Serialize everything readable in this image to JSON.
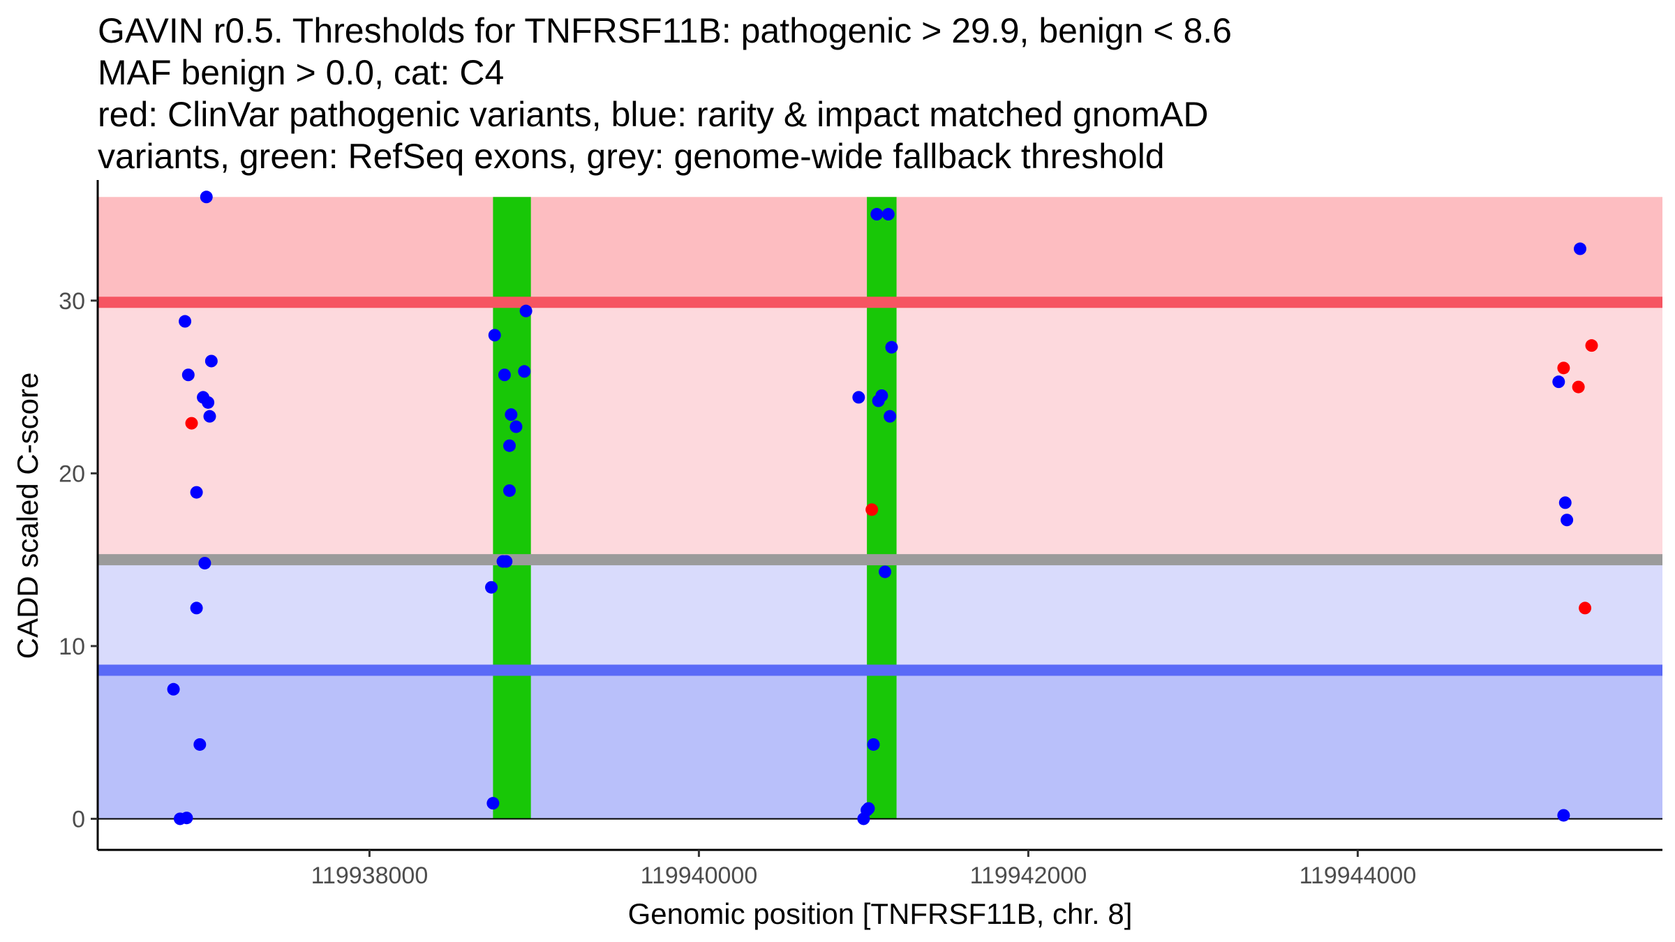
{
  "title_lines": [
    "GAVIN r0.5. Thresholds for TNFRSF11B: pathogenic > 29.9, benign < 8.6",
    "MAF benign > 0.0, cat: C4",
    "red: ClinVar pathogenic variants, blue: rarity & impact matched gnomAD",
    "variants, green: RefSeq exons, grey: genome-wide fallback threshold"
  ],
  "chart_data": {
    "type": "scatter",
    "title": "GAVIN r0.5. Thresholds for TNFRSF11B: pathogenic > 29.9, benign < 8.6 MAF benign > 0.0, cat: C4",
    "xlabel": "Genomic position [TNFRSF11B, chr. 8]",
    "ylabel": "CADD scaled C-score",
    "xlim": [
      119936350,
      119945850
    ],
    "ylim": [
      -1.8,
      36.9
    ],
    "x_ticks": [
      119938000,
      119940000,
      119942000,
      119944000
    ],
    "x_tick_labels": [
      "119938000",
      "119940000",
      "119942000",
      "119944000"
    ],
    "y_ticks": [
      0,
      10,
      20,
      30
    ],
    "y_tick_labels": [
      "0",
      "10",
      "20",
      "30"
    ],
    "grid": false,
    "colors": {
      "pathogenic_zone": "#fdbdc1",
      "intermediate_upper": "#fdd9dd",
      "intermediate_lower": "#d9dbfc",
      "benign_zone": "#b9c0fa",
      "pathogenic_line": "#f65562",
      "benign_line": "#5a6af7",
      "fallback_line": "#9b9b9b",
      "exon": "#18c707",
      "gnomad": "#0000ff",
      "clinvar": "#ff0000"
    },
    "bands": [
      {
        "name": "pathogenic-zone",
        "y0": 29.9,
        "y1": 36.0,
        "color": "#fdbdc1"
      },
      {
        "name": "intermediate-upper-zone",
        "y0": 15.0,
        "y1": 29.9,
        "color": "#fdd9dd"
      },
      {
        "name": "intermediate-lower-zone",
        "y0": 8.6,
        "y1": 15.0,
        "color": "#d9dbfc"
      },
      {
        "name": "benign-zone",
        "y0": 0.0,
        "y1": 8.6,
        "color": "#b9c0fa"
      }
    ],
    "x_range": [
      119936350,
      119945850
    ],
    "exons": [
      {
        "start": 119938750,
        "end": 119938980
      },
      {
        "start": 119941020,
        "end": 119941200
      }
    ],
    "thresholds": [
      {
        "name": "pathogenic-threshold",
        "value": 29.9,
        "color": "#f65562"
      },
      {
        "name": "fallback-threshold",
        "value": 15.0,
        "color": "#9b9b9b"
      },
      {
        "name": "benign-threshold",
        "value": 8.6,
        "color": "#5a6af7"
      }
    ],
    "series": [
      {
        "name": "gnomAD",
        "color": "#0000ff",
        "points": [
          [
            119937010,
            36.0
          ],
          [
            119936880,
            28.8
          ],
          [
            119937040,
            26.5
          ],
          [
            119936900,
            25.7
          ],
          [
            119936990,
            24.4
          ],
          [
            119937020,
            24.1
          ],
          [
            119937030,
            23.3
          ],
          [
            119936950,
            18.9
          ],
          [
            119937000,
            14.8
          ],
          [
            119936950,
            12.2
          ],
          [
            119936810,
            7.5
          ],
          [
            119936970,
            4.3
          ],
          [
            119936850,
            0.0
          ],
          [
            119936890,
            0.05
          ],
          [
            119938950,
            29.4
          ],
          [
            119938760,
            28.0
          ],
          [
            119938820,
            25.7
          ],
          [
            119938940,
            25.9
          ],
          [
            119938860,
            23.4
          ],
          [
            119938890,
            22.7
          ],
          [
            119938850,
            21.6
          ],
          [
            119938850,
            19.0
          ],
          [
            119938810,
            14.9
          ],
          [
            119938830,
            14.9
          ],
          [
            119938740,
            13.4
          ],
          [
            119938750,
            0.9
          ],
          [
            119941080,
            35.0
          ],
          [
            119941150,
            35.0
          ],
          [
            119941170,
            27.3
          ],
          [
            119940970,
            24.4
          ],
          [
            119941090,
            24.2
          ],
          [
            119941110,
            24.5
          ],
          [
            119941160,
            23.3
          ],
          [
            119941130,
            14.3
          ],
          [
            119941060,
            4.3
          ],
          [
            119941020,
            0.5
          ],
          [
            119941030,
            0.6
          ],
          [
            119941000,
            0.0
          ],
          [
            119945350,
            33.0
          ],
          [
            119945220,
            25.3
          ],
          [
            119945260,
            18.3
          ],
          [
            119945270,
            17.3
          ],
          [
            119945250,
            0.2
          ]
        ]
      },
      {
        "name": "ClinVar",
        "color": "#ff0000",
        "points": [
          [
            119936920,
            22.9
          ],
          [
            119941050,
            17.9
          ],
          [
            119945250,
            26.1
          ],
          [
            119945420,
            27.4
          ],
          [
            119945340,
            25.0
          ],
          [
            119945380,
            12.2
          ]
        ]
      }
    ]
  }
}
